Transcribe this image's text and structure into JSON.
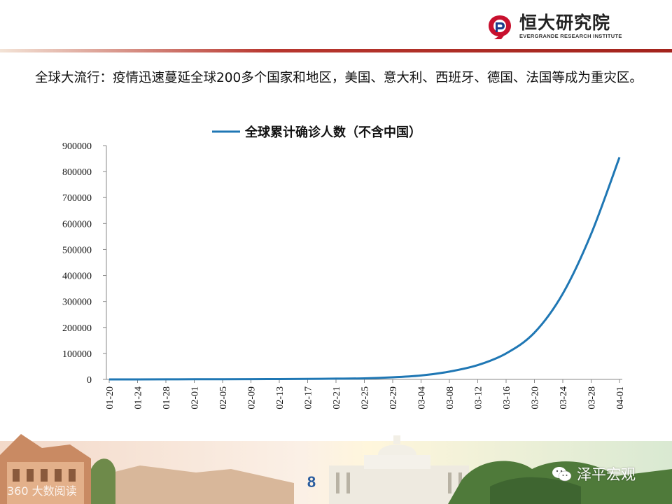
{
  "header": {
    "logo_cn": "恒大研究院",
    "logo_en": "EVERGRANDE RESEARCH INSTITUTE",
    "accent_color": "#a3231c"
  },
  "intro_text": "全球大流行：疫情迅速蔓延全球200多个国家和地区，美国、意大利、西班牙、德国、法国等成为重灾区。",
  "chart_data": {
    "type": "line",
    "legend": "全球累计确诊人数（不含中国）",
    "legend_position": "top-center",
    "line_color": "#1f77b4",
    "ylim": [
      0,
      900000
    ],
    "yticks": [
      0,
      100000,
      200000,
      300000,
      400000,
      500000,
      600000,
      700000,
      800000,
      900000
    ],
    "xtick_labels": [
      "01-20",
      "01-24",
      "01-28",
      "02-01",
      "02-05",
      "02-09",
      "02-13",
      "02-17",
      "02-21",
      "02-25",
      "02-29",
      "03-04",
      "03-08",
      "03-12",
      "03-16",
      "03-20",
      "03-24",
      "03-28",
      "04-01"
    ],
    "grid": false,
    "series": [
      {
        "x": [
          "01-20",
          "01-24",
          "01-28",
          "02-01",
          "02-05",
          "02-09",
          "02-13",
          "02-17",
          "02-21",
          "02-25",
          "02-29",
          "03-04",
          "03-08",
          "03-12",
          "03-16",
          "03-20",
          "03-24",
          "03-28",
          "04-01"
        ],
        "values": [
          0,
          50,
          200,
          500,
          800,
          1000,
          1300,
          1800,
          3000,
          4000,
          8000,
          15000,
          30000,
          55000,
          100000,
          180000,
          330000,
          560000,
          855000
        ]
      }
    ]
  },
  "footer": {
    "page_number": "8",
    "watermark_left": "360 大数阅读",
    "watermark_right": "泽平宏观"
  }
}
